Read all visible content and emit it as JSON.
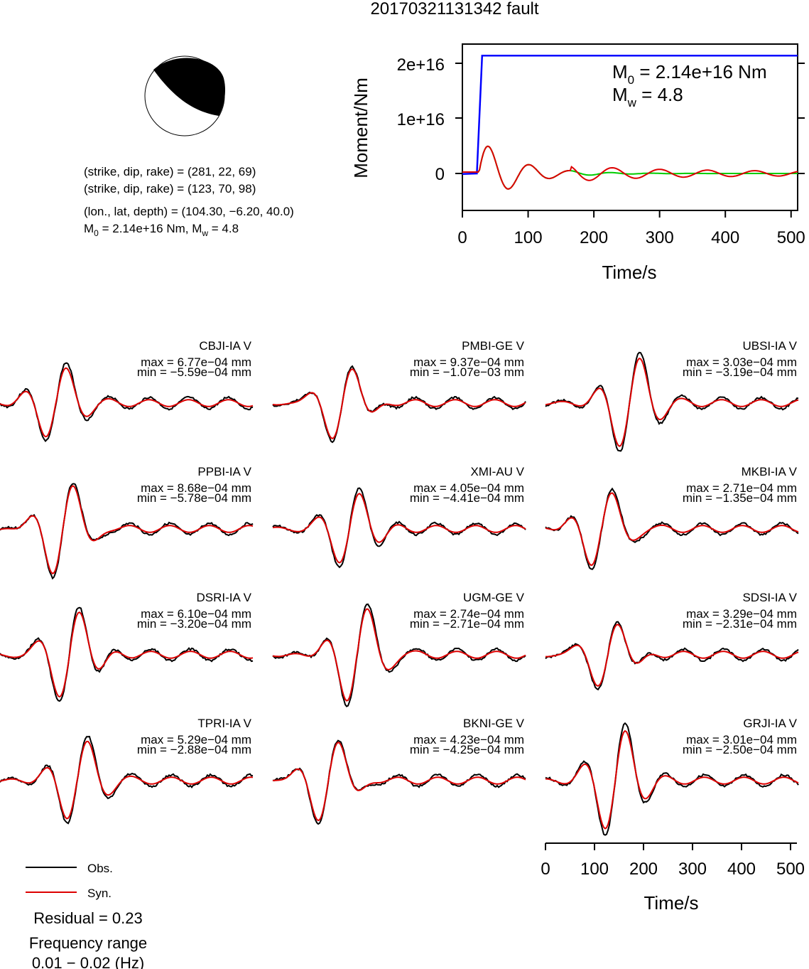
{
  "event_title": "20170321131342 fault",
  "beachball": {
    "plane1": {
      "strike": 281,
      "dip": 22,
      "rake": 69
    },
    "plane2": {
      "strike": 123,
      "dip": 70,
      "rake": 98
    }
  },
  "info": {
    "line1": "(strike, dip, rake) = (281, 22, 69)",
    "line2": "(strike, dip, rake) = (123, 70, 98)",
    "line3": "(lon., lat, depth) = (104.30, −6.20, 40.0)",
    "line4_prefix": "M",
    "line4_sub0": "0",
    "line4_mid": " = 2.14e+16 Nm, M",
    "line4_subw": "w",
    "line4_end": " = 4.8"
  },
  "moment_plot": {
    "ylabel": "Moment/Nm",
    "xlabel": "Time/s",
    "yticks": [
      "0",
      "1e+16",
      "2e+16"
    ],
    "xticks": [
      "0",
      "100",
      "200",
      "300",
      "400",
      "500"
    ],
    "annot_m0_prefix": "M",
    "annot_m0_sub": "0",
    "annot_m0_value": " = 2.14e+16 Nm",
    "annot_mw_prefix": "M",
    "annot_mw_sub": "w",
    "annot_mw_value": " = 4.8",
    "colors": {
      "cumulative": "#0000ff",
      "rate_green": "#00cc00",
      "rate_red": "#dd0000"
    }
  },
  "stations": [
    {
      "name": "CBJI-IA V",
      "max": "max = 6.77e−04 mm",
      "min": "min = −5.59e−04 mm"
    },
    {
      "name": "PMBI-GE V",
      "max": "max = 9.37e−04 mm",
      "min": "min = −1.07e−03 mm"
    },
    {
      "name": "UBSI-IA V",
      "max": "max = 3.03e−04 mm",
      "min": "min = −3.19e−04 mm"
    },
    {
      "name": "PPBI-IA V",
      "max": "max = 8.68e−04 mm",
      "min": "min = −5.78e−04 mm"
    },
    {
      "name": "XMI-AU V",
      "max": "max = 4.05e−04 mm",
      "min": "min = −4.41e−04 mm"
    },
    {
      "name": "MKBI-IA V",
      "max": "max = 2.71e−04 mm",
      "min": "min = −1.35e−04 mm"
    },
    {
      "name": "DSRI-IA V",
      "max": "max = 6.10e−04 mm",
      "min": "min = −3.20e−04 mm"
    },
    {
      "name": "UGM-GE V",
      "max": "max = 2.74e−04 mm",
      "min": "min = −2.71e−04 mm"
    },
    {
      "name": "SDSI-IA V",
      "max": "max = 3.29e−04 mm",
      "min": "min = −2.31e−04 mm"
    },
    {
      "name": "TPRI-IA V",
      "max": "max = 5.29e−04 mm",
      "min": "min = −2.88e−04 mm"
    },
    {
      "name": "BKNI-GE V",
      "max": "max = 4.23e−04 mm",
      "min": "min = −4.25e−04 mm"
    },
    {
      "name": "GRJI-IA V",
      "max": "max = 3.01e−04 mm",
      "min": "min = −2.50e−04 mm"
    }
  ],
  "legend": {
    "obs": "Obs.",
    "syn": "Syn.",
    "obs_color": "#000000",
    "syn_color": "#dd0000"
  },
  "residual": "Residual = 0.23",
  "freq_label": "Frequency range",
  "freq_value": "0.01 − 0.02 (Hz)",
  "time_axis": {
    "xlabel": "Time/s",
    "xticks": [
      "0",
      "100",
      "200",
      "300",
      "400",
      "500"
    ]
  },
  "chart_data": [
    {
      "type": "line",
      "title": "",
      "xlabel": "Time/s",
      "ylabel": "Moment/Nm",
      "xlim": [
        0,
        510
      ],
      "ylim": [
        -6500000000000000.0,
        2.35e+16
      ],
      "series": [
        {
          "values_kind": "cumulative moment",
          "x": [
            0,
            22,
            30,
            510
          ],
          "y": [
            -100000000000000.0,
            0,
            2.14e+16,
            2.14e+16
          ]
        }
      ]
    },
    {
      "type": "line",
      "title": "",
      "xlabel": "Time/s",
      "xlim": [
        0,
        510
      ],
      "series": [
        {
          "name": "Obs."
        },
        {
          "name": "Syn."
        }
      ]
    }
  ]
}
